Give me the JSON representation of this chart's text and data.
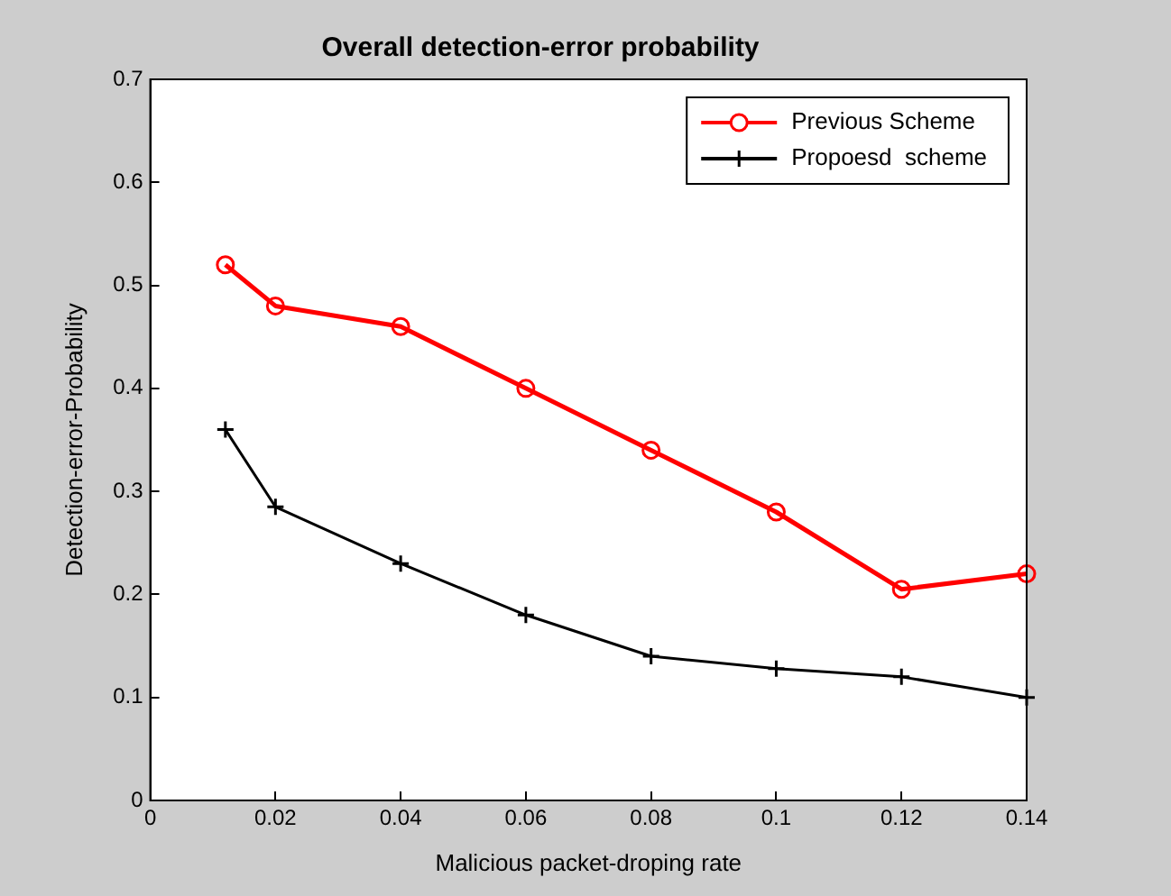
{
  "chart_data": {
    "type": "line",
    "title": "Overall detection-error probability",
    "xlabel": "Malicious packet-droping rate",
    "ylabel": "Detection-error-Probability",
    "xlim": [
      0,
      0.14
    ],
    "xticks": [
      0,
      0.02,
      0.04,
      0.06,
      0.08,
      0.1,
      0.12,
      0.14
    ],
    "ylim": [
      0,
      0.7
    ],
    "yticks": [
      0,
      0.1,
      0.2,
      0.3,
      0.4,
      0.5,
      0.6,
      0.7
    ],
    "grid": false,
    "legend": "top right",
    "line_style": "solid",
    "series": [
      {
        "name": "Previous Scheme",
        "color": "#ff0000",
        "marker": "circle",
        "x": [
          0.012,
          0.02,
          0.04,
          0.06,
          0.08,
          0.1,
          0.12,
          0.14
        ],
        "values": [
          0.52,
          0.48,
          0.46,
          0.4,
          0.34,
          0.28,
          0.205,
          0.22
        ]
      },
      {
        "name": "Propoesd  scheme",
        "color": "#000000",
        "marker": "cross",
        "x": [
          0.012,
          0.02,
          0.04,
          0.06,
          0.08,
          0.1,
          0.12,
          0.14
        ],
        "values": [
          0.36,
          0.285,
          0.23,
          0.18,
          0.14,
          0.128,
          0.12,
          0.1
        ]
      }
    ]
  }
}
